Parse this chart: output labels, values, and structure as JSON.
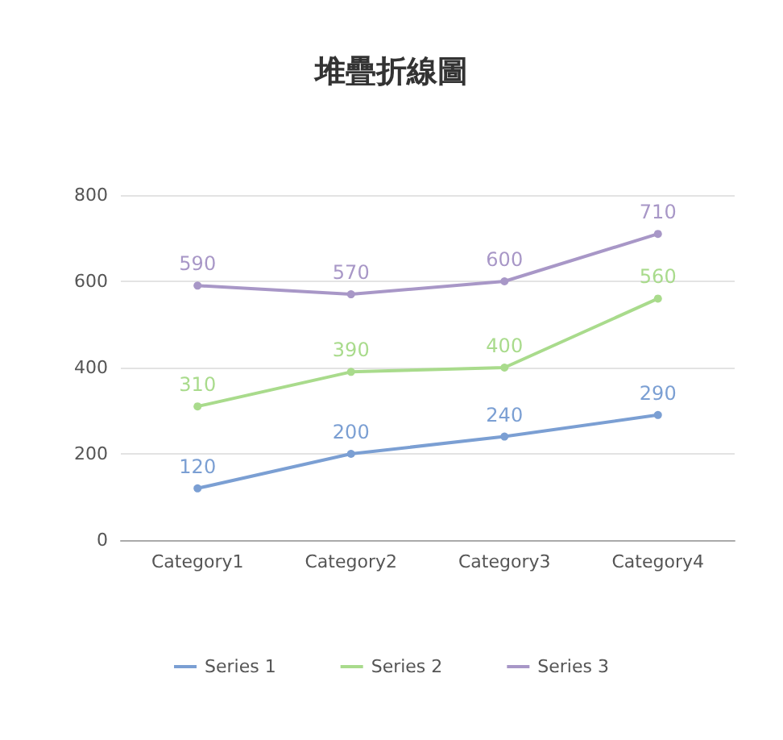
{
  "chart_data": {
    "type": "line",
    "title": "堆疊折線圖",
    "categories": [
      "Category1",
      "Category2",
      "Category3",
      "Category4"
    ],
    "series": [
      {
        "name": "Series 1",
        "color": "#7b9fd3",
        "values": [
          120,
          200,
          240,
          290
        ]
      },
      {
        "name": "Series 2",
        "color": "#a9db8c",
        "values": [
          310,
          390,
          400,
          560
        ]
      },
      {
        "name": "Series 3",
        "color": "#a897c7",
        "values": [
          590,
          570,
          600,
          710
        ]
      }
    ],
    "ylim": [
      0,
      800
    ],
    "yticks": [
      0,
      200,
      400,
      600,
      800
    ],
    "grid": "y",
    "legend": "bottom",
    "marker": "circle",
    "line_style": "solid",
    "data_labels": true
  }
}
